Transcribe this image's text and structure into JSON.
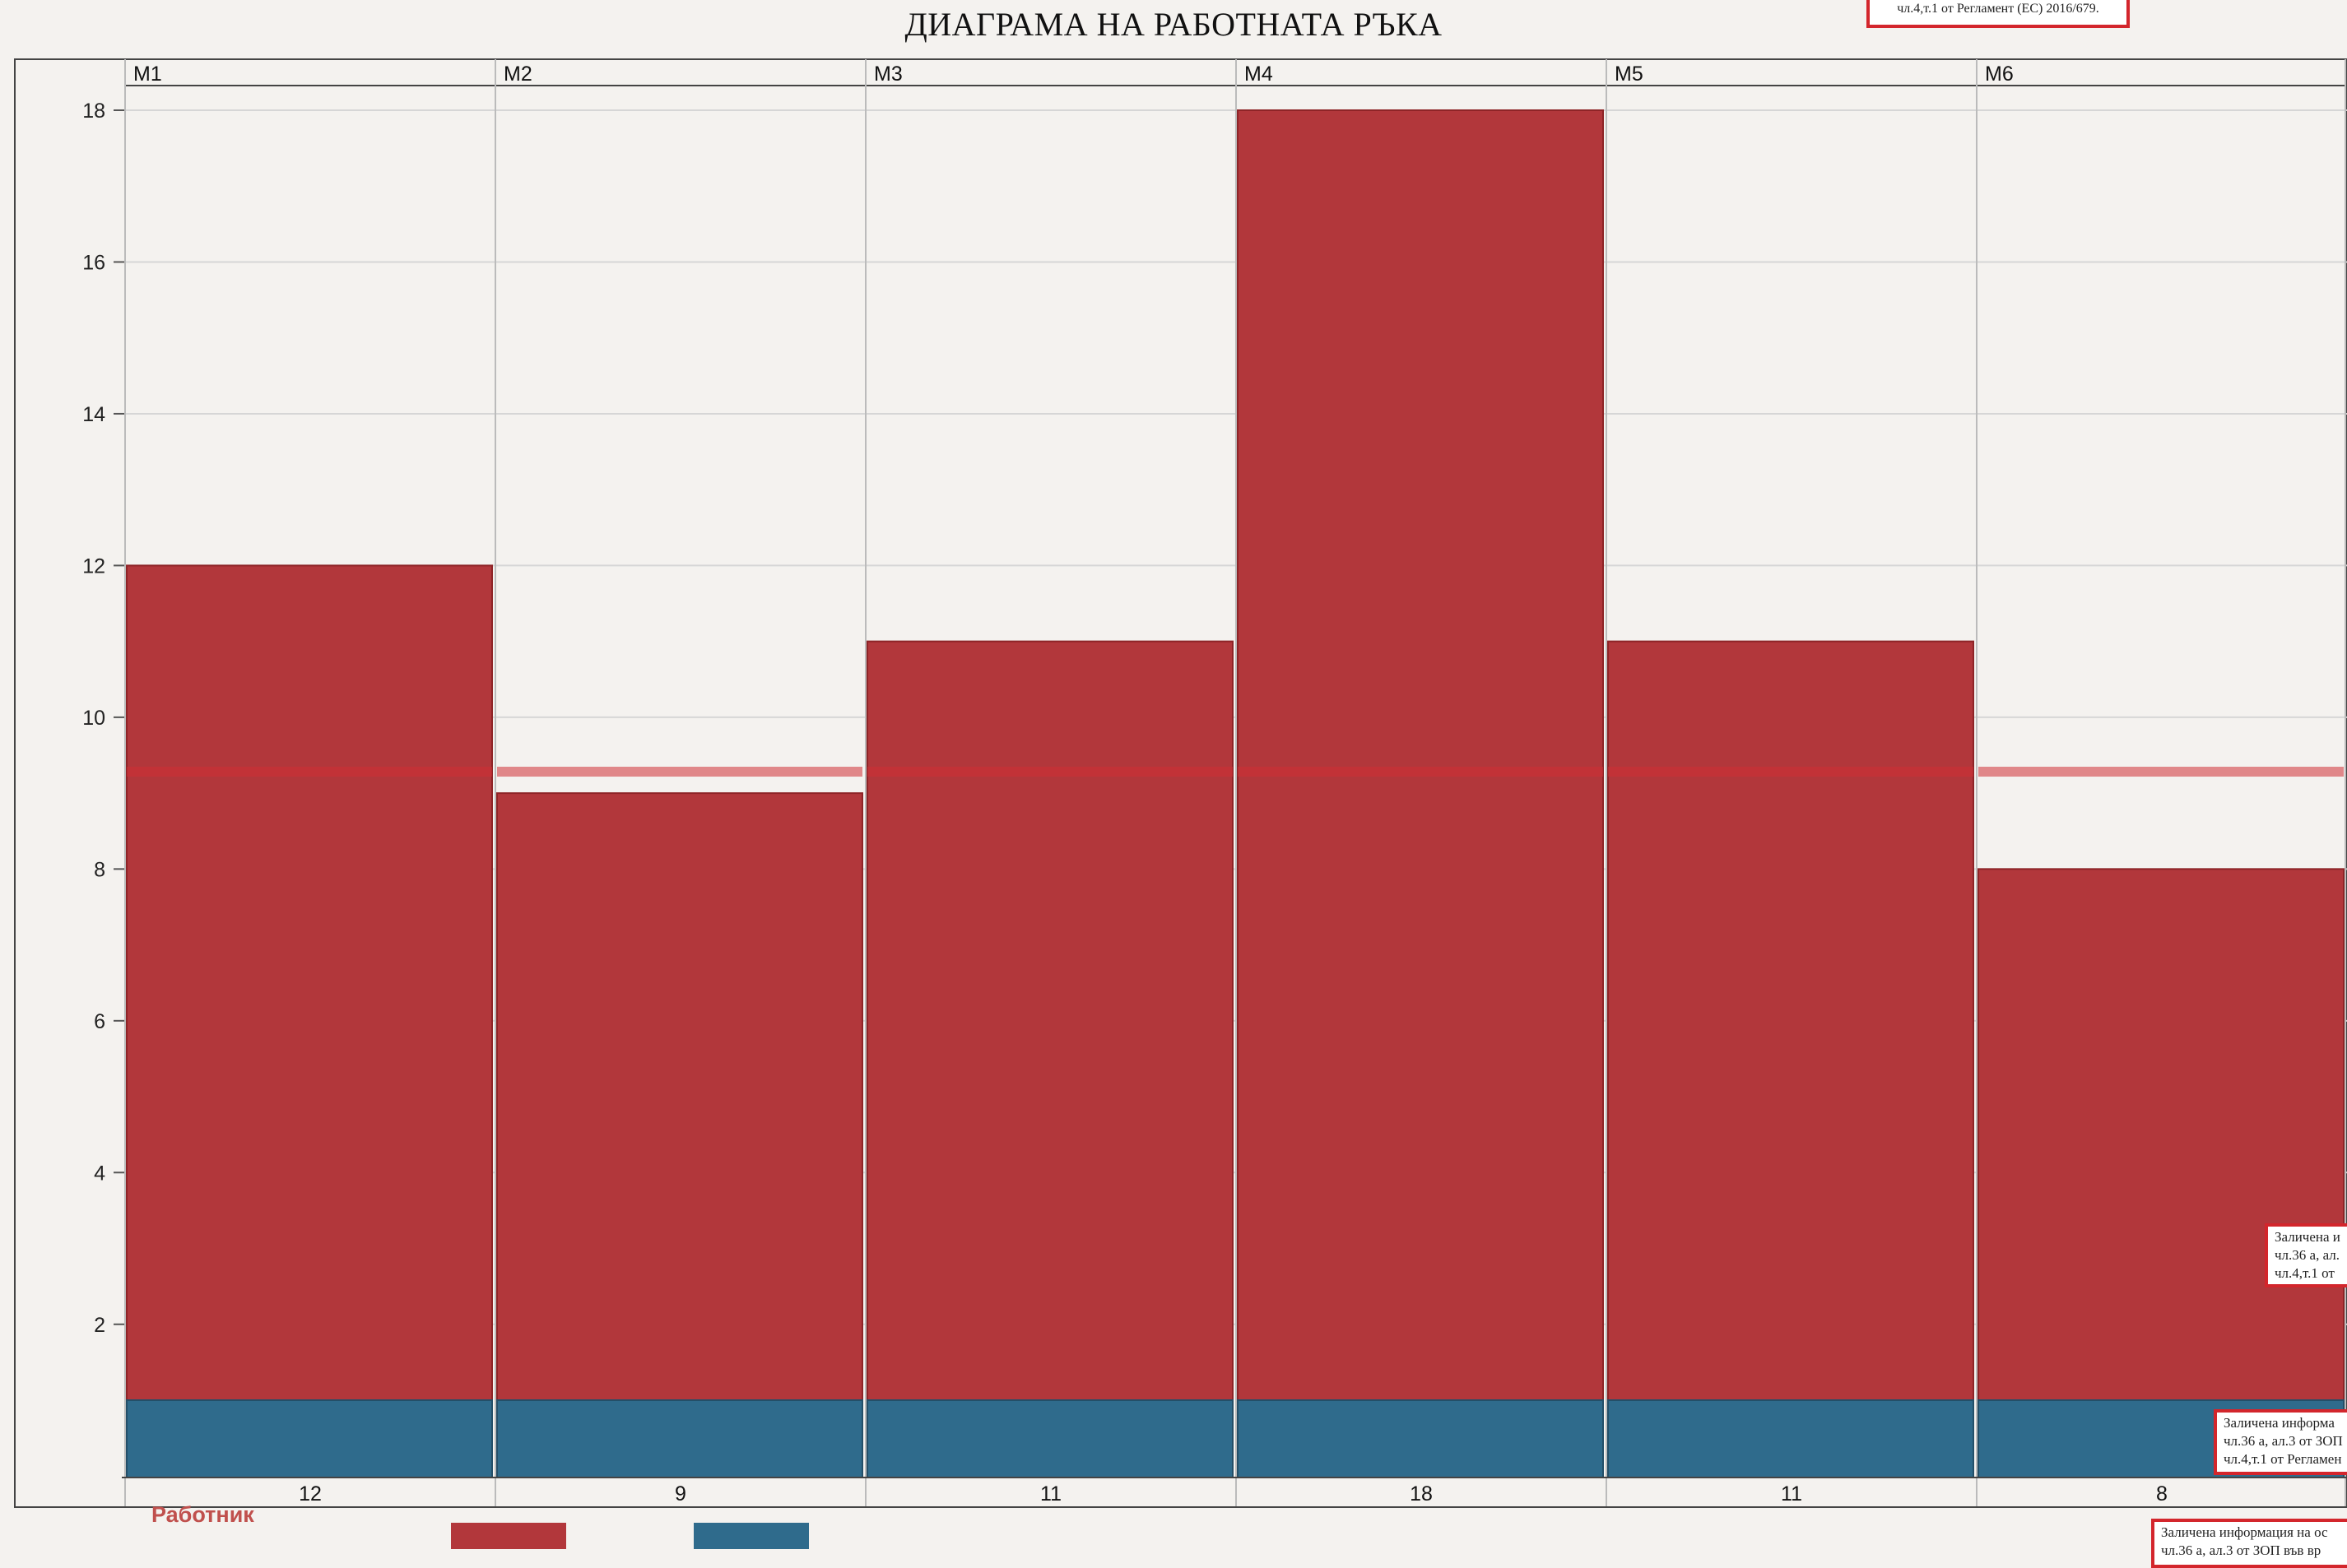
{
  "chart_data": {
    "type": "bar",
    "title": "ДИАГРАМА НА РАБОТНАТА РЪКА",
    "categories": [
      "M1",
      "M2",
      "M3",
      "M4",
      "M5",
      "M6"
    ],
    "values": [
      12,
      9,
      11,
      18,
      11,
      8
    ],
    "series": [
      {
        "name": "Работник",
        "values": [
          12,
          9,
          11,
          18,
          11,
          8
        ],
        "color": "#b2373b"
      },
      {
        "name": "",
        "values": [
          1,
          1,
          1,
          1,
          1,
          1
        ],
        "color": "#2f6b8c"
      }
    ],
    "table_values": [
      "12",
      "9",
      "11",
      "18",
      "11",
      "8"
    ],
    "ylim": [
      0,
      18
    ],
    "yticks": [
      2,
      4,
      6,
      8,
      10,
      12,
      14,
      16,
      18
    ],
    "grid": true,
    "legend_placement": "bottom-left",
    "legend": {
      "label": "Работник"
    }
  },
  "stamps": {
    "top": {
      "lines": [
        "чл.4,т.1 от Регламент (ЕС) 2016/679."
      ]
    },
    "right_mid": {
      "lines": [
        "Заличена и",
        "чл.36 а, ал.",
        "чл.4,т.1 от"
      ]
    },
    "right_low": {
      "lines": [
        "Заличена информа",
        "чл.36 а, ал.3 от ЗОП",
        "чл.4,т.1 от Регламен"
      ]
    },
    "bottom": {
      "lines": [
        "Заличена информация на ос",
        "чл.36 а, ал.3 от ЗОП във вр"
      ]
    }
  },
  "colors": {
    "bar_red": "#b2373b",
    "bar_blue": "#2f6b8c",
    "stamp_border": "#d3262c",
    "grid": "#d6d6d6",
    "axis": "#555555"
  }
}
